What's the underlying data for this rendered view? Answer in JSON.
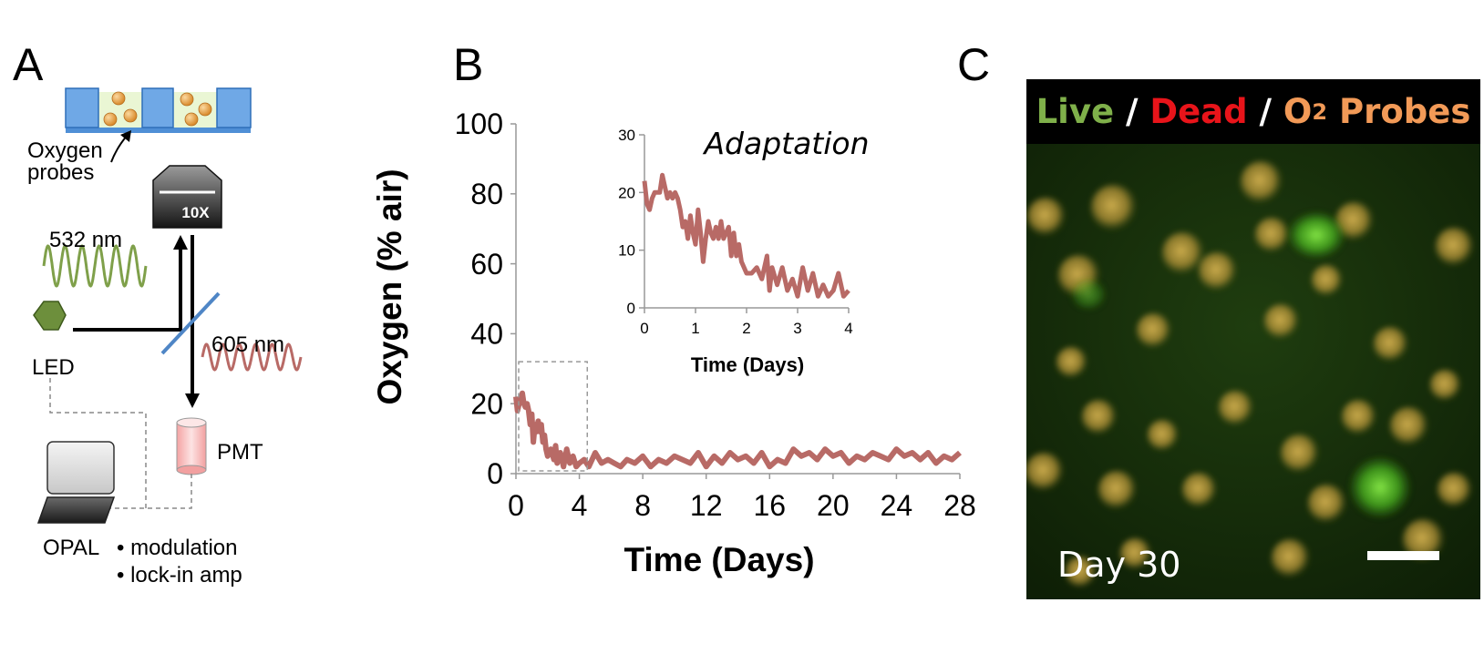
{
  "panels": {
    "a": "A",
    "b": "B",
    "c": "C"
  },
  "diagram": {
    "oxygen_probes": [
      "Oxygen",
      "probes"
    ],
    "objective": "10X",
    "excitation": "532 nm",
    "emission": "605 nm",
    "led": "LED",
    "pmt": "PMT",
    "opal": "OPAL",
    "bullets": [
      "• modulation",
      "• lock-in amp"
    ]
  },
  "chart_data": [
    {
      "type": "line",
      "ylabel": "Oxygen (% air)",
      "xlabel": "Time (Days)",
      "xlim": [
        0,
        28
      ],
      "ylim": [
        0,
        100
      ],
      "xticks": [
        0,
        4,
        8,
        12,
        16,
        20,
        24,
        28
      ],
      "yticks": [
        0,
        20,
        40,
        60,
        80,
        100
      ],
      "series": [
        {
          "color": "#b86a66",
          "x": [
            0,
            0.1,
            0.2,
            0.3,
            0.4,
            0.5,
            0.6,
            0.7,
            0.8,
            0.9,
            1.0,
            1.1,
            1.2,
            1.3,
            1.4,
            1.5,
            1.6,
            1.7,
            1.8,
            1.9,
            2.0,
            2.2,
            2.4,
            2.5,
            2.6,
            2.8,
            3.0,
            3.2,
            3.4,
            3.6,
            3.8,
            4.0,
            4.3,
            4.6,
            5.0,
            5.4,
            5.8,
            6.2,
            6.6,
            7.0,
            7.5,
            8.0,
            8.5,
            9.0,
            9.5,
            10.0,
            10.5,
            11.0,
            11.5,
            12.0,
            12.5,
            13.0,
            13.5,
            14.0,
            14.5,
            15.0,
            15.5,
            16.0,
            16.5,
            17.0,
            17.5,
            18.0,
            18.5,
            19.0,
            19.5,
            20.0,
            20.5,
            21.0,
            21.5,
            22.0,
            22.5,
            23.0,
            23.5,
            24.0,
            24.5,
            25.0,
            25.5,
            26.0,
            26.5,
            27.0,
            27.5,
            28.0
          ],
          "y": [
            22,
            18,
            20,
            21,
            23,
            20,
            19,
            20,
            18,
            14,
            17,
            9,
            14,
            12,
            15,
            12,
            14,
            9,
            11,
            7,
            5,
            7,
            4,
            8,
            3,
            6,
            2,
            7,
            3,
            5,
            2,
            3,
            4,
            2,
            6,
            3,
            4,
            3,
            2,
            4,
            3,
            5,
            2,
            4,
            3,
            5,
            4,
            3,
            6,
            2,
            5,
            3,
            6,
            4,
            5,
            3,
            6,
            2,
            4,
            3,
            7,
            5,
            6,
            4,
            7,
            5,
            6,
            3,
            5,
            4,
            6,
            5,
            4,
            7,
            5,
            6,
            4,
            6,
            3,
            5,
            4,
            6
          ]
        }
      ]
    },
    {
      "type": "line",
      "title": "Adaptation",
      "xlabel": "Time (Days)",
      "xlim": [
        0,
        4
      ],
      "ylim": [
        0,
        30
      ],
      "xticks": [
        0,
        1,
        2,
        3,
        4
      ],
      "yticks": [
        0,
        10,
        20,
        30
      ],
      "series": [
        {
          "color": "#b86a66",
          "x": [
            0,
            0.05,
            0.1,
            0.15,
            0.2,
            0.3,
            0.35,
            0.4,
            0.45,
            0.5,
            0.55,
            0.6,
            0.65,
            0.7,
            0.75,
            0.8,
            0.85,
            0.9,
            0.95,
            1.0,
            1.05,
            1.1,
            1.15,
            1.2,
            1.25,
            1.3,
            1.35,
            1.4,
            1.45,
            1.5,
            1.55,
            1.6,
            1.65,
            1.7,
            1.75,
            1.8,
            1.85,
            1.9,
            2.0,
            2.1,
            2.2,
            2.3,
            2.4,
            2.45,
            2.5,
            2.6,
            2.7,
            2.8,
            2.9,
            3.0,
            3.1,
            3.2,
            3.3,
            3.4,
            3.5,
            3.6,
            3.7,
            3.8,
            3.9,
            4.0
          ],
          "y": [
            22,
            18,
            17,
            19,
            20,
            20,
            23,
            21,
            19,
            20,
            19,
            20,
            19,
            17,
            14,
            15,
            12,
            16,
            13,
            11,
            17,
            13,
            8,
            12,
            15,
            13,
            12,
            14,
            12,
            15,
            12,
            13,
            14,
            9,
            13,
            9,
            11,
            8,
            6,
            6,
            7,
            5,
            9,
            3,
            7,
            4,
            7,
            3,
            5,
            2,
            7,
            3,
            6,
            2,
            4,
            2,
            3,
            6,
            2,
            3
          ]
        }
      ]
    }
  ],
  "photo": {
    "title": [
      {
        "text": "Live",
        "color": "#7fb04a"
      },
      {
        "text": " / ",
        "color": "#ffffff"
      },
      {
        "text": "Dead",
        "color": "#e8141a"
      },
      {
        "text": " / ",
        "color": "#ffffff"
      },
      {
        "text": "O",
        "color": "#f29a57"
      },
      {
        "text": "2",
        "color": "#f29a57",
        "sub": true
      },
      {
        "text": " Probes",
        "color": "#f29a57"
      }
    ],
    "day_label": "Day 30"
  }
}
